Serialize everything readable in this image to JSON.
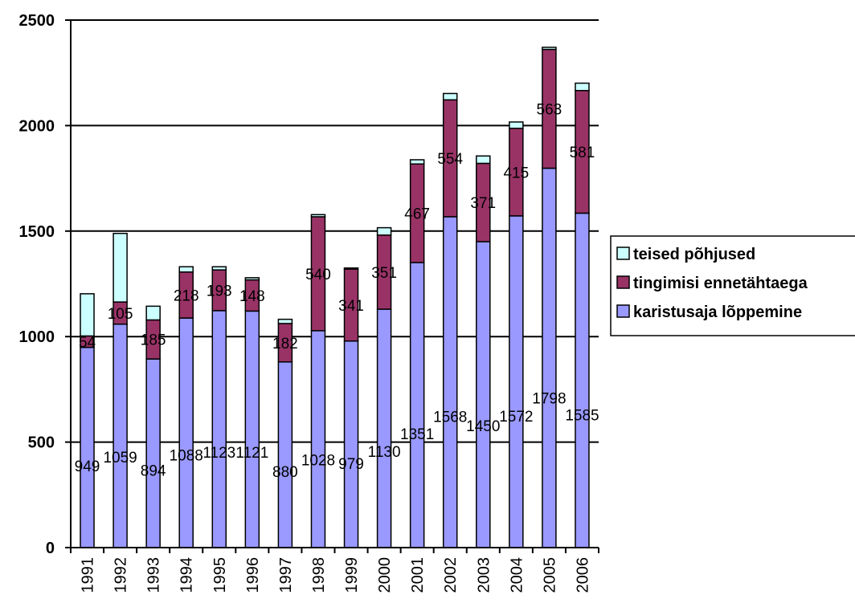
{
  "chart_data": {
    "type": "bar",
    "stacked": true,
    "categories": [
      "1991",
      "1992",
      "1993",
      "1994",
      "1995",
      "1996",
      "1997",
      "1998",
      "1999",
      "2000",
      "2001",
      "2002",
      "2003",
      "2004",
      "2005",
      "2006"
    ],
    "series": [
      {
        "name": "karistusaja lõppemine",
        "color": "#9999ff",
        "values": [
          949,
          1059,
          894,
          1088,
          1123,
          1121,
          880,
          1028,
          979,
          1130,
          1351,
          1568,
          1450,
          1572,
          1798,
          1585
        ]
      },
      {
        "name": "tingimisi ennetähtaega",
        "color": "#993366",
        "values": [
          54,
          105,
          185,
          218,
          193,
          148,
          182,
          540,
          341,
          351,
          467,
          554,
          371,
          415,
          563,
          581
        ]
      },
      {
        "name": "teised põhjused",
        "color": "#ccffff",
        "values": [
          200,
          325,
          65,
          25,
          15,
          10,
          20,
          10,
          5,
          35,
          20,
          30,
          35,
          30,
          10,
          35
        ]
      }
    ],
    "ylim": [
      0,
      2500
    ],
    "yticks": [
      "0",
      "500",
      "1000",
      "1500",
      "2000",
      "2500"
    ],
    "title": "",
    "xlabel": "",
    "ylabel": "",
    "grid": true,
    "legend": "right",
    "legend_order": [
      "teised põhjused",
      "tingimisi ennetähtaega",
      "karistusaja lõppemine"
    ]
  }
}
